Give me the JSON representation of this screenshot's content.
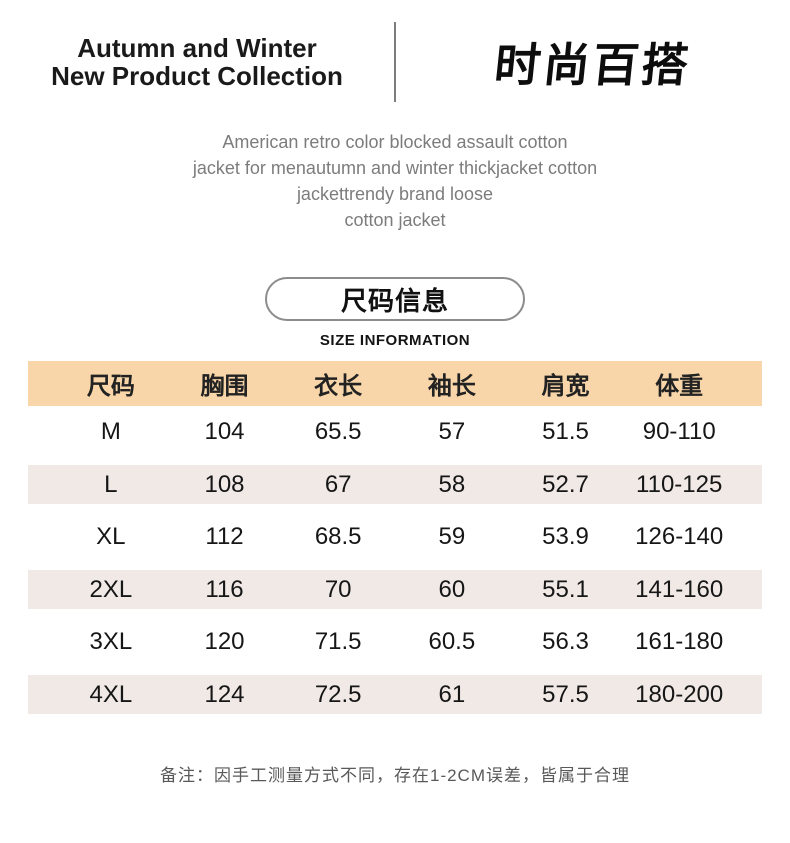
{
  "header": {
    "title_line1": "Autumn and Winter",
    "title_line2": "New Product Collection",
    "logo": "时尚百搭"
  },
  "description": {
    "lines": [
      "American retro color blocked assault cotton",
      "jacket for menautumn and winter thickjacket cotton",
      "jackettrendy brand loose",
      "cotton jacket"
    ]
  },
  "size_section": {
    "badge": "尺码信息",
    "caption": "SIZE INFORMATION"
  },
  "table": {
    "columns": [
      "尺码",
      "胸围",
      "衣长",
      "袖长",
      "肩宽",
      "体重"
    ],
    "rows": [
      {
        "cells": [
          "M",
          "104",
          "65.5",
          "57",
          "51.5",
          "90-110"
        ]
      },
      {
        "cells": [
          "L",
          "108",
          "67",
          "58",
          "52.7",
          "110-125"
        ]
      },
      {
        "cells": [
          "XL",
          "112",
          "68.5",
          "59",
          "53.9",
          "126-140"
        ]
      },
      {
        "cells": [
          "2XL",
          "116",
          "70",
          "60",
          "55.1",
          "141-160"
        ]
      },
      {
        "cells": [
          "3XL",
          "120",
          "71.5",
          "60.5",
          "56.3",
          "161-180"
        ]
      },
      {
        "cells": [
          "4XL",
          "124",
          "72.5",
          "61",
          "57.5",
          "180-200"
        ]
      }
    ]
  },
  "note": "备注：因手工测量方式不同，存在1-2CM误差，皆属于合理",
  "colors": {
    "table_header_bg": "#f8d6a9",
    "table_stripe_bg": "#f0e9e6",
    "text_primary": "#1a1a1a",
    "text_muted": "#7c7c7c"
  }
}
